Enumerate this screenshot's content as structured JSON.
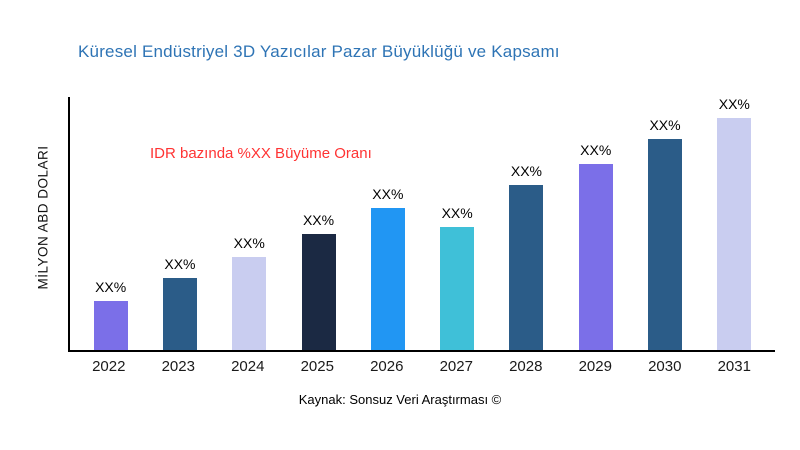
{
  "chart_data": {
    "type": "bar",
    "title": "Küresel Endüstriyel 3D Yazıcılar Pazar Büyüklüğü ve Kapsamı",
    "ylabel": "MİLYON ABD DOLARI",
    "annotation": "IDR bazında %XX Büyüme Oranı",
    "source": "Kaynak: Sonsuz Veri Araştırması ©",
    "categories": [
      "2022",
      "2023",
      "2024",
      "2025",
      "2026",
      "2027",
      "2028",
      "2029",
      "2030",
      "2031"
    ],
    "values": [
      21,
      31,
      40,
      50,
      61,
      53,
      71,
      80,
      91,
      100
    ],
    "bar_labels": [
      "XX%",
      "XX%",
      "XX%",
      "XX%",
      "XX%",
      "XX%",
      "XX%",
      "XX%",
      "XX%",
      "XX%"
    ],
    "bar_colors": [
      "#7B6FE8",
      "#2B5C88",
      "#C9CDF0",
      "#1B2943",
      "#2196F3",
      "#3FC0D8",
      "#2B5C88",
      "#7B6FE8",
      "#2B5C88",
      "#C9CDF0"
    ],
    "title_color": "#2E74B5",
    "annotation_color": "#FF3333",
    "axis_color": "#000000",
    "ylim": [
      0,
      100
    ],
    "grid": false,
    "legend": false
  }
}
